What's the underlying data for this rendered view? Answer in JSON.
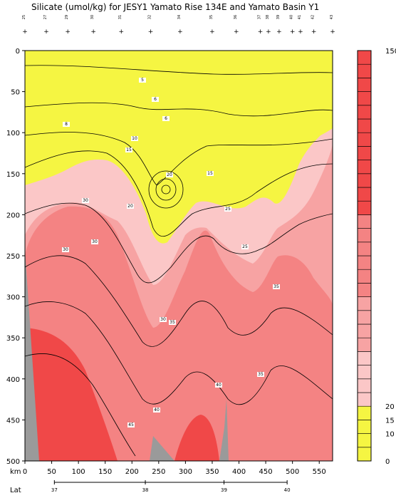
{
  "chart_data": {
    "type": "heatmap",
    "title": "Silicate (umol/kg) for JESY1 Yamato Rise 134E and Yamato Basin Y1",
    "x_unit_label": "km",
    "x_ticks": [
      0,
      50,
      100,
      150,
      200,
      250,
      300,
      350,
      400,
      450,
      500,
      550
    ],
    "xlim": [
      0,
      575
    ],
    "y_ticks": [
      0,
      50,
      100,
      150,
      200,
      250,
      300,
      350,
      400,
      450,
      500
    ],
    "ylim": [
      0,
      500
    ],
    "lat_label": "Lat",
    "lat_ticks": [
      {
        "label": "37",
        "km": 55
      },
      {
        "label": "38",
        "km": 225
      },
      {
        "label": "39",
        "km": 372
      },
      {
        "label": "40",
        "km": 490
      }
    ],
    "station_labels": [
      "25",
      "27",
      "29",
      "30",
      "31",
      "32",
      "34",
      "35",
      "36",
      "37",
      "38",
      "39",
      "40",
      "41",
      "42",
      "43"
    ],
    "station_km": [
      0,
      40,
      80,
      128,
      180,
      235,
      290,
      350,
      395,
      440,
      455,
      475,
      500,
      515,
      540,
      575
    ],
    "colorbar_levels": [
      0,
      5,
      10,
      15,
      20,
      25,
      30,
      35,
      40,
      45,
      50,
      55,
      60,
      65,
      70,
      75,
      80,
      85,
      90,
      95,
      100,
      105,
      110,
      115,
      120,
      125,
      130,
      135,
      140,
      145,
      150
    ],
    "colorbar_tick_labels": [
      "0",
      "10",
      "15",
      "20",
      "150"
    ],
    "colors": {
      "yellow": "#f5f542",
      "light_pink": "#fbc7c7",
      "mid_pink": "#f7a3a3",
      "salmon": "#f48383",
      "red": "#f04848",
      "bottom": "#9a9a9a"
    },
    "contour_labels": [
      "5",
      "6",
      "8",
      "6",
      "10",
      "15",
      "15",
      "20",
      "20",
      "25",
      "25",
      "30",
      "30",
      "30",
      "30",
      "35",
      "35",
      "35",
      "40",
      "40",
      "45"
    ]
  }
}
